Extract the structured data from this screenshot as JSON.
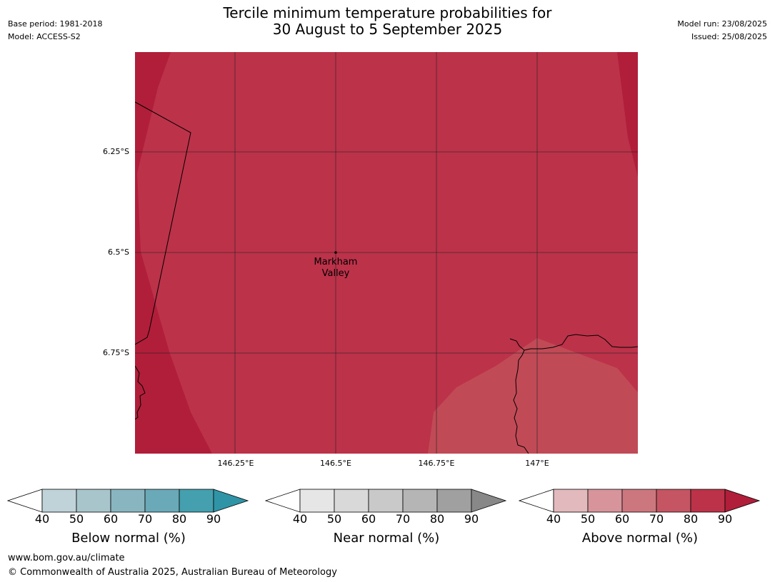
{
  "header": {
    "title_line1": "Tercile minimum temperature probabilities for",
    "title_line2": "30 August to 5 September 2025",
    "base_period": "Base period: 1981-2018",
    "model": "Model: ACCESS-S2",
    "model_run": "Model run: 23/08/2025",
    "issued": "Issued: 25/08/2025"
  },
  "map": {
    "latitudes": [
      "6.25°S",
      "6.5°S",
      "6.75°S"
    ],
    "longitudes": [
      "146.25°E",
      "146.5°E",
      "146.75°E",
      "147°E"
    ],
    "place_line1": "Markham",
    "place_line2": "Valley",
    "colors": {
      "above_80": "#bb3249",
      "above_90": "#b01e3a",
      "above_70": "#c04a56"
    }
  },
  "colorbars": [
    {
      "title": "Below normal (%)",
      "ticks": [
        "40",
        "50",
        "60",
        "70",
        "80",
        "90"
      ],
      "colors": [
        "#ffffff",
        "#bfd3d9",
        "#a7c5cb",
        "#89b5c1",
        "#6aaab8",
        "#44a0ae",
        "#2f94a6"
      ]
    },
    {
      "title": "Near normal (%)",
      "ticks": [
        "40",
        "50",
        "60",
        "70",
        "80",
        "90"
      ],
      "colors": [
        "#ffffff",
        "#e6e6e6",
        "#d9d9d9",
        "#c9c9c9",
        "#b5b5b5",
        "#a0a0a0",
        "#888888"
      ]
    },
    {
      "title": "Above normal (%)",
      "ticks": [
        "40",
        "50",
        "60",
        "70",
        "80",
        "90"
      ],
      "colors": [
        "#ffffff",
        "#e2b9bd",
        "#d7949b",
        "#cc777e",
        "#c55563",
        "#bb3249",
        "#b01e3a"
      ]
    }
  ],
  "footer": {
    "url": "www.bom.gov.au/climate",
    "copyright": "© Commonwealth of Australia 2025, Australian Bureau of Meteorology"
  }
}
